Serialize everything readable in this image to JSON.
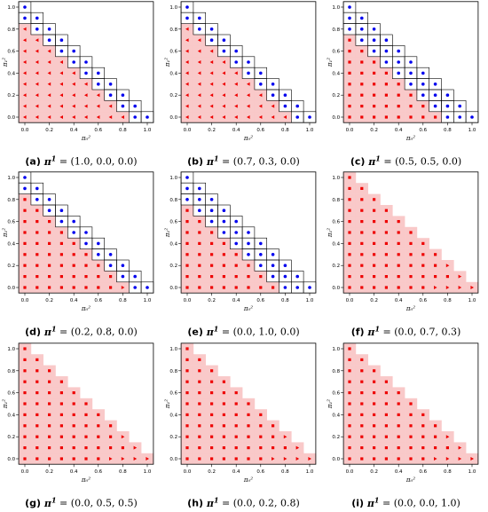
{
  "chart_data": [
    {
      "type": "scatter",
      "label": "(a)",
      "pi_values": "(1.0, 0.0, 0.0)",
      "xlabel": "π₀²",
      "ylabel": "π₁²",
      "xlim": [
        0,
        1
      ],
      "ylim": [
        0,
        1
      ],
      "x_ticks": [
        "0.0",
        "0.2",
        "0.4",
        "0.6",
        "0.8",
        "1.0"
      ],
      "y_ticks": [
        "0.0",
        "0.2",
        "0.4",
        "0.6",
        "0.8",
        "1.0"
      ],
      "blue_circles_per_column": 2,
      "red_triangles_fill_rest": true,
      "red_squares": 0,
      "right_triangle_at_end": false
    },
    {
      "type": "scatter",
      "label": "(b)",
      "pi_values": "(0.7, 0.3, 0.0)",
      "xlabel": "π₀²",
      "ylabel": "π₁²",
      "xlim": [
        0,
        1
      ],
      "ylim": [
        0,
        1
      ],
      "x_ticks": [
        "0.0",
        "0.2",
        "0.4",
        "0.6",
        "0.8",
        "1.0"
      ],
      "y_ticks": [
        "0.0",
        "0.2",
        "0.4",
        "0.6",
        "0.8",
        "1.0"
      ],
      "blue_circles_per_column": 2,
      "red_triangles_fill_rest": true,
      "red_squares": 0,
      "right_triangle_at_end": false
    },
    {
      "type": "scatter",
      "label": "(c)",
      "pi_values": "(0.5, 0.5, 0.0)",
      "xlabel": "π₀²",
      "ylabel": "π₁²",
      "xlim": [
        0,
        1
      ],
      "ylim": [
        0,
        1
      ],
      "x_ticks": [
        "0.0",
        "0.2",
        "0.4",
        "0.6",
        "0.8",
        "1.0"
      ],
      "y_ticks": [
        "0.0",
        "0.2",
        "0.4",
        "0.6",
        "0.8",
        "1.0"
      ],
      "blue_circles_per_column": 3,
      "red_squares_fill_rest": true,
      "right_triangle_at_end": false
    },
    {
      "type": "scatter",
      "label": "(d)",
      "pi_values": "(0.2, 0.8, 0.0)",
      "xlabel": "π₀²",
      "ylabel": "π₁²",
      "xlim": [
        0,
        1
      ],
      "ylim": [
        0,
        1
      ],
      "x_ticks": [
        "0.0",
        "0.2",
        "0.4",
        "0.6",
        "0.8",
        "1.0"
      ],
      "y_ticks": [
        "0.0",
        "0.2",
        "0.4",
        "0.6",
        "0.8",
        "1.0"
      ],
      "blue_circles_per_column": 2,
      "red_squares_fill_rest": true,
      "right_triangle_at_end": true
    },
    {
      "type": "scatter",
      "label": "(e)",
      "pi_values": "(0.0, 1.0, 0.0)",
      "xlabel": "π₀²",
      "ylabel": "π₁²",
      "xlim": [
        0,
        1
      ],
      "ylim": [
        0,
        1
      ],
      "x_ticks": [
        "0.0",
        "0.2",
        "0.4",
        "0.6",
        "0.8",
        "1.0"
      ],
      "y_ticks": [
        "0.0",
        "0.2",
        "0.4",
        "0.6",
        "0.8",
        "1.0"
      ],
      "blue_circles_per_column": 3,
      "red_squares_fill_rest": true,
      "right_triangle_at_end": true
    },
    {
      "type": "scatter",
      "label": "(f)",
      "pi_values": "(0.0, 0.7, 0.3)",
      "xlabel": "π₀²",
      "ylabel": "π₁²",
      "xlim": [
        0,
        1
      ],
      "ylim": [
        0,
        1
      ],
      "x_ticks": [
        "0.0",
        "0.2",
        "0.4",
        "0.6",
        "0.8",
        "1.0"
      ],
      "y_ticks": [
        "0.0",
        "0.2",
        "0.4",
        "0.6",
        "0.8",
        "1.0"
      ],
      "blue_circles_per_column": 0,
      "red_squares_fill_rest": true,
      "right_triangle_at_end": true
    },
    {
      "type": "scatter",
      "label": "(g)",
      "pi_values": "(0.0, 0.5, 0.5)",
      "xlabel": "π₀²",
      "ylabel": "π₁²",
      "xlim": [
        0,
        1
      ],
      "ylim": [
        0,
        1
      ],
      "x_ticks": [
        "0.0",
        "0.2",
        "0.4",
        "0.6",
        "0.8",
        "1.0"
      ],
      "y_ticks": [
        "0.0",
        "0.2",
        "0.4",
        "0.6",
        "0.8",
        "1.0"
      ],
      "blue_circles_per_column": 0,
      "red_squares_fill_rest": true,
      "right_triangle_at_end": true
    },
    {
      "type": "scatter",
      "label": "(h)",
      "pi_values": "(0.0, 0.2, 0.8)",
      "xlabel": "π₀²",
      "ylabel": "π₁²",
      "xlim": [
        0,
        1
      ],
      "ylim": [
        0,
        1
      ],
      "x_ticks": [
        "0.0",
        "0.2",
        "0.4",
        "0.6",
        "0.8",
        "1.0"
      ],
      "y_ticks": [
        "0.0",
        "0.2",
        "0.4",
        "0.6",
        "0.8",
        "1.0"
      ],
      "blue_circles_per_column": 0,
      "red_squares_fill_rest": true,
      "right_triangle_at_end": true
    },
    {
      "type": "scatter",
      "label": "(i)",
      "pi_values": "(0.0, 0.0, 1.0)",
      "xlabel": "π₀²",
      "ylabel": "π₁²",
      "xlim": [
        0,
        1
      ],
      "ylim": [
        0,
        1
      ],
      "x_ticks": [
        "0.0",
        "0.2",
        "0.4",
        "0.6",
        "0.8",
        "1.0"
      ],
      "y_ticks": [
        "0.0",
        "0.2",
        "0.4",
        "0.6",
        "0.8",
        "1.0"
      ],
      "blue_circles_per_column": 0,
      "red_squares_fill_rest": true,
      "right_triangle_at_end": true
    }
  ],
  "colors": {
    "blue": "#0000ee",
    "red": "#ee0000",
    "region_pink": "#f9c9c9",
    "axis": "#000000"
  }
}
